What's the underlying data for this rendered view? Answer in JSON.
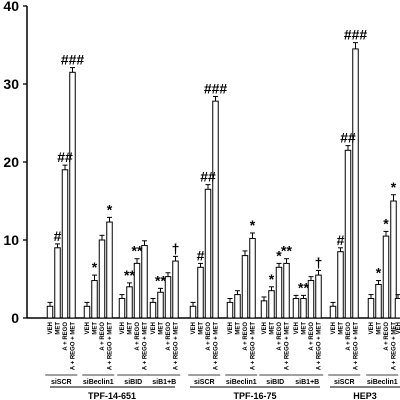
{
  "chart_data": {
    "type": "bar",
    "ylim": [
      0,
      40
    ],
    "yticks": [
      "0",
      "10",
      "20",
      "30",
      "40"
    ],
    "treatments": [
      "VEH",
      "MET",
      "A + REGO",
      "A + REGO + MET"
    ],
    "cell_lines": [
      {
        "name": "TPF-14-651",
        "groups": [
          {
            "sirna": "siSCR",
            "values": [
              1.5,
              9,
              19,
              31.5
            ],
            "errors": [
              0.5,
              0.5,
              0.6,
              0.6
            ],
            "marks": [
              "",
              "#",
              "##",
              "###"
            ]
          },
          {
            "sirna": "siBeclin1",
            "values": [
              1.5,
              4.8,
              10,
              12.3
            ],
            "errors": [
              0.5,
              0.7,
              0.6,
              0.6
            ],
            "marks": [
              "",
              "*",
              "",
              "*"
            ]
          },
          {
            "sirna": "siBID",
            "values": [
              2.5,
              4,
              7,
              9.3
            ],
            "errors": [
              0.5,
              0.5,
              0.6,
              0.6
            ],
            "marks": [
              "",
              "**",
              "**",
              ""
            ]
          },
          {
            "sirna": "siB1+B",
            "values": [
              2,
              3.3,
              5.3,
              7.3
            ],
            "errors": [
              0.5,
              0.5,
              0.5,
              0.6
            ],
            "marks": [
              "",
              "**",
              "",
              "†"
            ]
          }
        ]
      },
      {
        "name": "TPF-16-75",
        "groups": [
          {
            "sirna": "siSCR",
            "values": [
              1.5,
              6.5,
              16.5,
              27.8
            ],
            "errors": [
              0.5,
              0.5,
              0.6,
              0.6
            ],
            "marks": [
              "",
              "#",
              "##",
              "###"
            ]
          },
          {
            "sirna": "siBeclin1",
            "values": [
              2,
              3,
              8,
              10.2
            ],
            "errors": [
              0.5,
              0.5,
              0.6,
              0.7
            ],
            "marks": [
              "",
              "",
              "",
              "*"
            ]
          },
          {
            "sirna": "siBID",
            "values": [
              2.2,
              3.5,
              6.5,
              7
            ],
            "errors": [
              0.5,
              0.5,
              0.5,
              0.6
            ],
            "marks": [
              "",
              "*",
              "*",
              "**"
            ]
          },
          {
            "sirna": "siB1+B",
            "values": [
              2.5,
              2.5,
              4.8,
              5.5
            ],
            "errors": [
              0.4,
              0.4,
              0.5,
              0.6
            ],
            "marks": [
              "",
              "**",
              "",
              "†"
            ]
          }
        ]
      },
      {
        "name": "HEP3",
        "groups": [
          {
            "sirna": "siSCR",
            "values": [
              1.5,
              8.5,
              21.5,
              34.5
            ],
            "errors": [
              0.5,
              0.5,
              0.6,
              0.8
            ],
            "marks": [
              "",
              "#",
              "##",
              "###"
            ]
          },
          {
            "sirna": "siBeclin1",
            "values": [
              2.5,
              4.3,
              10.5,
              15
            ],
            "errors": [
              0.5,
              0.5,
              0.6,
              0.8
            ],
            "marks": [
              "",
              "*",
              "*",
              "*"
            ]
          },
          {
            "sirna": "",
            "values": [
              2.5
            ],
            "errors": [
              0.5
            ],
            "marks": [
              ""
            ]
          }
        ]
      }
    ]
  }
}
